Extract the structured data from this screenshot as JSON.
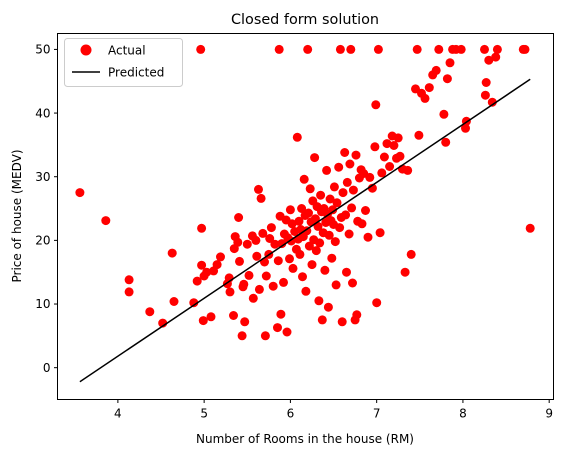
{
  "chart_data": {
    "type": "scatter",
    "title": "Closed form solution",
    "xlabel": "Number of Rooms in the house (RM)",
    "ylabel": "Price of house (MEDV)",
    "xlim": [
      3.3,
      9.05
    ],
    "ylim": [
      -5,
      52.5
    ],
    "xticks": [
      4,
      5,
      6,
      7,
      8,
      9
    ],
    "yticks": [
      0,
      10,
      20,
      30,
      40,
      50
    ],
    "grid": false,
    "legend": {
      "placement": "upper-left",
      "entries": [
        "Actual",
        "Predicted"
      ]
    },
    "colors": {
      "actual": "#ff0000",
      "predicted": "#000000"
    },
    "series": [
      {
        "name": "Actual",
        "kind": "scatter",
        "points": [
          [
            3.56,
            27.5
          ],
          [
            3.86,
            23.1
          ],
          [
            4.13,
            13.8
          ],
          [
            4.13,
            11.9
          ],
          [
            4.37,
            8.8
          ],
          [
            4.52,
            7.0
          ],
          [
            4.63,
            18.0
          ],
          [
            4.65,
            10.4
          ],
          [
            4.88,
            10.2
          ],
          [
            4.92,
            13.6
          ],
          [
            4.96,
            50.0
          ],
          [
            4.97,
            21.9
          ],
          [
            4.97,
            16.1
          ],
          [
            4.99,
            7.4
          ],
          [
            5.0,
            14.4
          ],
          [
            5.03,
            15.0
          ],
          [
            5.08,
            8.0
          ],
          [
            5.11,
            15.2
          ],
          [
            5.15,
            16.2
          ],
          [
            5.19,
            17.4
          ],
          [
            5.27,
            13.2
          ],
          [
            5.29,
            14.1
          ],
          [
            5.3,
            11.9
          ],
          [
            5.34,
            8.2
          ],
          [
            5.35,
            18.7
          ],
          [
            5.36,
            20.6
          ],
          [
            5.39,
            19.7
          ],
          [
            5.4,
            23.6
          ],
          [
            5.41,
            16.7
          ],
          [
            5.44,
            5.0
          ],
          [
            5.45,
            12.7
          ],
          [
            5.46,
            13.1
          ],
          [
            5.47,
            7.2
          ],
          [
            5.5,
            19.4
          ],
          [
            5.52,
            14.5
          ],
          [
            5.56,
            20.7
          ],
          [
            5.57,
            10.9
          ],
          [
            5.6,
            20.0
          ],
          [
            5.61,
            17.5
          ],
          [
            5.63,
            28.0
          ],
          [
            5.64,
            12.3
          ],
          [
            5.66,
            26.6
          ],
          [
            5.68,
            21.1
          ],
          [
            5.7,
            16.6
          ],
          [
            5.71,
            5.0
          ],
          [
            5.72,
            14.4
          ],
          [
            5.75,
            17.8
          ],
          [
            5.76,
            20.3
          ],
          [
            5.78,
            22.0
          ],
          [
            5.8,
            12.8
          ],
          [
            5.82,
            19.4
          ],
          [
            5.85,
            6.3
          ],
          [
            5.86,
            16.8
          ],
          [
            5.87,
            50.0
          ],
          [
            5.88,
            23.8
          ],
          [
            5.89,
            8.4
          ],
          [
            5.9,
            19.5
          ],
          [
            5.92,
            13.4
          ],
          [
            5.93,
            21.0
          ],
          [
            5.95,
            23.2
          ],
          [
            5.96,
            5.6
          ],
          [
            5.97,
            20.4
          ],
          [
            5.99,
            17.1
          ],
          [
            6.0,
            24.8
          ],
          [
            6.01,
            19.9
          ],
          [
            6.02,
            22.6
          ],
          [
            6.03,
            15.6
          ],
          [
            6.05,
            21.4
          ],
          [
            6.07,
            18.6
          ],
          [
            6.08,
            36.2
          ],
          [
            6.09,
            20.2
          ],
          [
            6.1,
            23.0
          ],
          [
            6.11,
            17.8
          ],
          [
            6.12,
            21.7
          ],
          [
            6.13,
            25.0
          ],
          [
            6.14,
            14.3
          ],
          [
            6.15,
            20.6
          ],
          [
            6.16,
            29.6
          ],
          [
            6.17,
            23.9
          ],
          [
            6.18,
            12.0
          ],
          [
            6.19,
            21.5
          ],
          [
            6.2,
            50.0
          ],
          [
            6.21,
            24.3
          ],
          [
            6.22,
            19.1
          ],
          [
            6.23,
            28.1
          ],
          [
            6.24,
            22.9
          ],
          [
            6.25,
            16.2
          ],
          [
            6.26,
            26.2
          ],
          [
            6.27,
            20.1
          ],
          [
            6.28,
            33.0
          ],
          [
            6.29,
            23.4
          ],
          [
            6.3,
            18.4
          ],
          [
            6.31,
            25.3
          ],
          [
            6.32,
            22.2
          ],
          [
            6.33,
            10.5
          ],
          [
            6.34,
            19.6
          ],
          [
            6.35,
            27.1
          ],
          [
            6.36,
            24.5
          ],
          [
            6.37,
            7.5
          ],
          [
            6.38,
            21.2
          ],
          [
            6.39,
            25.0
          ],
          [
            6.4,
            15.3
          ],
          [
            6.41,
            22.8
          ],
          [
            6.42,
            31.0
          ],
          [
            6.43,
            24.1
          ],
          [
            6.44,
            9.5
          ],
          [
            6.45,
            20.8
          ],
          [
            6.46,
            26.5
          ],
          [
            6.47,
            23.1
          ],
          [
            6.48,
            17.2
          ],
          [
            6.49,
            24.8
          ],
          [
            6.5,
            22.5
          ],
          [
            6.51,
            28.4
          ],
          [
            6.52,
            19.8
          ],
          [
            6.53,
            13.0
          ],
          [
            6.54,
            25.9
          ],
          [
            6.56,
            31.5
          ],
          [
            6.57,
            22.0
          ],
          [
            6.58,
            50.0
          ],
          [
            6.59,
            23.6
          ],
          [
            6.6,
            7.2
          ],
          [
            6.61,
            27.5
          ],
          [
            6.63,
            33.8
          ],
          [
            6.64,
            24.0
          ],
          [
            6.65,
            15.0
          ],
          [
            6.66,
            29.1
          ],
          [
            6.68,
            21.0
          ],
          [
            6.69,
            32.0
          ],
          [
            6.7,
            50.0
          ],
          [
            6.71,
            25.1
          ],
          [
            6.72,
            13.3
          ],
          [
            6.73,
            27.9
          ],
          [
            6.75,
            7.5
          ],
          [
            6.76,
            33.4
          ],
          [
            6.77,
            8.3
          ],
          [
            6.78,
            23.0
          ],
          [
            6.8,
            29.8
          ],
          [
            6.82,
            31.1
          ],
          [
            6.83,
            22.6
          ],
          [
            6.85,
            30.5
          ],
          [
            6.87,
            24.7
          ],
          [
            6.9,
            20.5
          ],
          [
            6.92,
            29.9
          ],
          [
            6.95,
            28.2
          ],
          [
            6.98,
            34.7
          ],
          [
            6.99,
            41.3
          ],
          [
            7.0,
            10.2
          ],
          [
            7.02,
            50.0
          ],
          [
            7.04,
            21.2
          ],
          [
            7.06,
            30.6
          ],
          [
            7.09,
            33.1
          ],
          [
            7.12,
            35.2
          ],
          [
            7.15,
            31.6
          ],
          [
            7.18,
            36.4
          ],
          [
            7.2,
            34.9
          ],
          [
            7.23,
            32.9
          ],
          [
            7.25,
            36.1
          ],
          [
            7.27,
            33.2
          ],
          [
            7.3,
            31.2
          ],
          [
            7.33,
            15.0
          ],
          [
            7.36,
            31.0
          ],
          [
            7.4,
            17.8
          ],
          [
            7.45,
            43.8
          ],
          [
            7.47,
            50.0
          ],
          [
            7.49,
            36.5
          ],
          [
            7.52,
            43.1
          ],
          [
            7.56,
            42.3
          ],
          [
            7.61,
            44.0
          ],
          [
            7.65,
            46.0
          ],
          [
            7.69,
            46.7
          ],
          [
            7.72,
            50.0
          ],
          [
            7.78,
            39.8
          ],
          [
            7.8,
            35.4
          ],
          [
            7.82,
            45.4
          ],
          [
            7.85,
            47.9
          ],
          [
            7.88,
            50.0
          ],
          [
            7.92,
            50.0
          ],
          [
            7.98,
            50.0
          ],
          [
            8.03,
            37.6
          ],
          [
            8.04,
            38.7
          ],
          [
            8.25,
            50.0
          ],
          [
            8.26,
            42.8
          ],
          [
            8.27,
            44.8
          ],
          [
            8.3,
            48.3
          ],
          [
            8.34,
            41.7
          ],
          [
            8.38,
            48.8
          ],
          [
            8.4,
            50.0
          ],
          [
            8.7,
            50.0
          ],
          [
            8.72,
            50.0
          ],
          [
            8.78,
            21.9
          ]
        ]
      },
      {
        "name": "Predicted",
        "kind": "line",
        "points": [
          [
            3.56,
            -2.2
          ],
          [
            8.78,
            45.3
          ]
        ]
      }
    ]
  }
}
